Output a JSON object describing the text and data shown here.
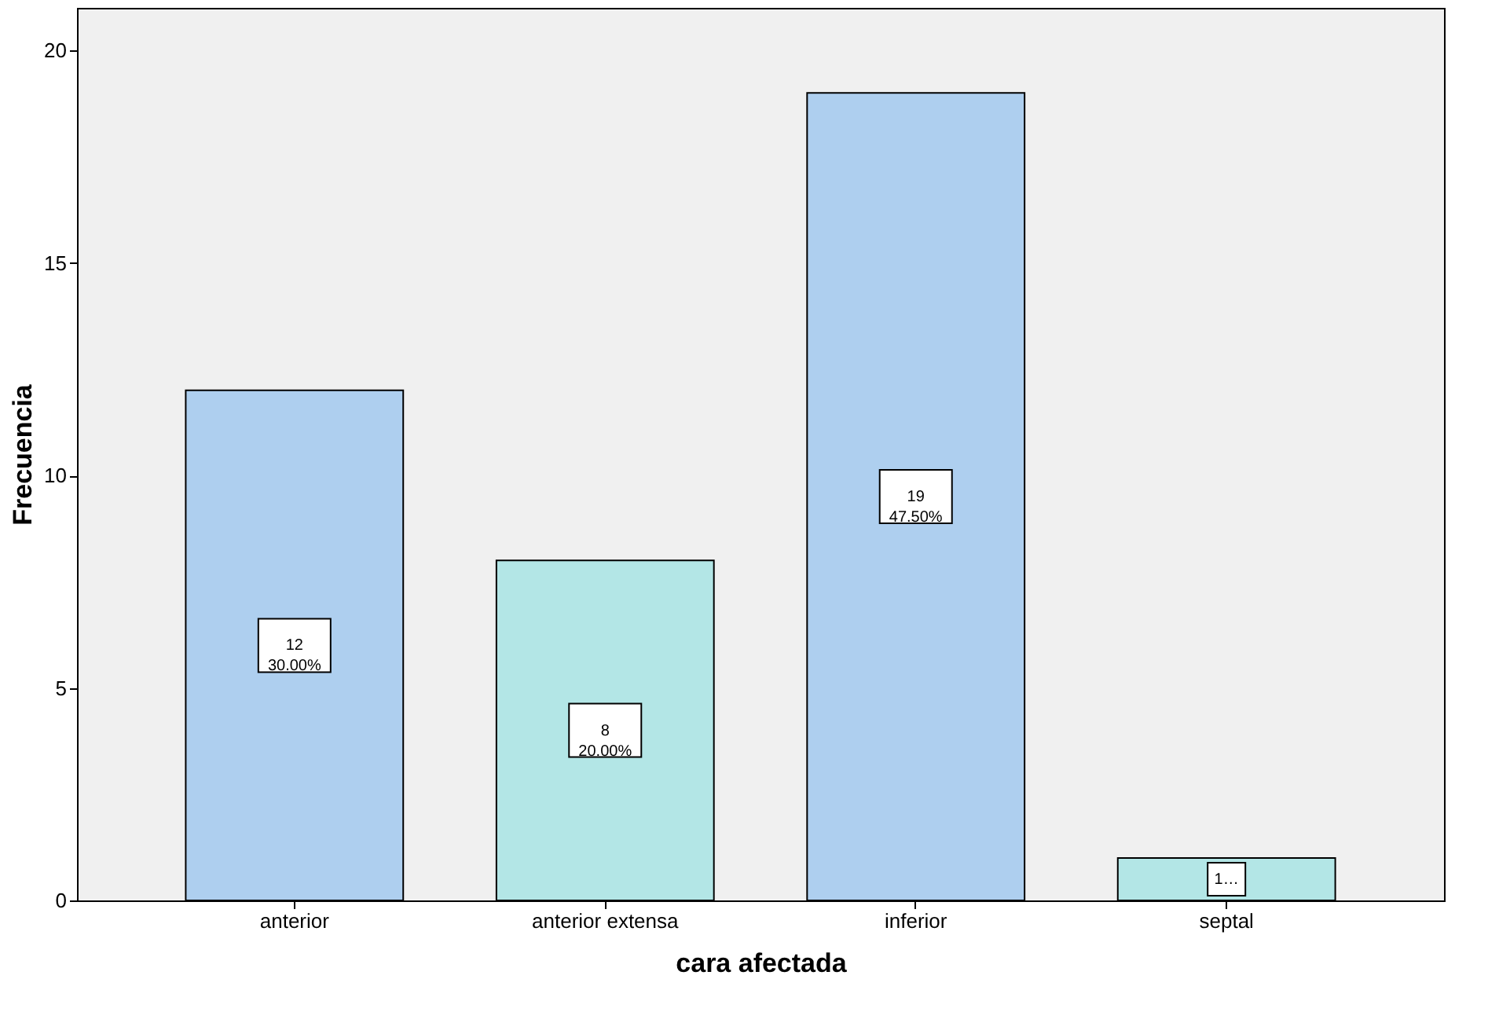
{
  "chart_data": {
    "type": "bar",
    "xlabel": "cara afectada",
    "ylabel": "Frecuencia",
    "categories": [
      "anterior",
      "anterior extensa",
      "inferior",
      "septal"
    ],
    "values": [
      12,
      8,
      19,
      1
    ],
    "colors": [
      "#aecfef",
      "#b3e6e6",
      "#aecfef",
      "#b3e6e6"
    ],
    "value_labels": [
      "12\n30.00%",
      "8\n20.00%",
      "19\n47.50%",
      "1…"
    ],
    "ylim": [
      0,
      21
    ],
    "yticks": [
      0,
      5,
      10,
      15,
      20
    ],
    "grid": false
  }
}
